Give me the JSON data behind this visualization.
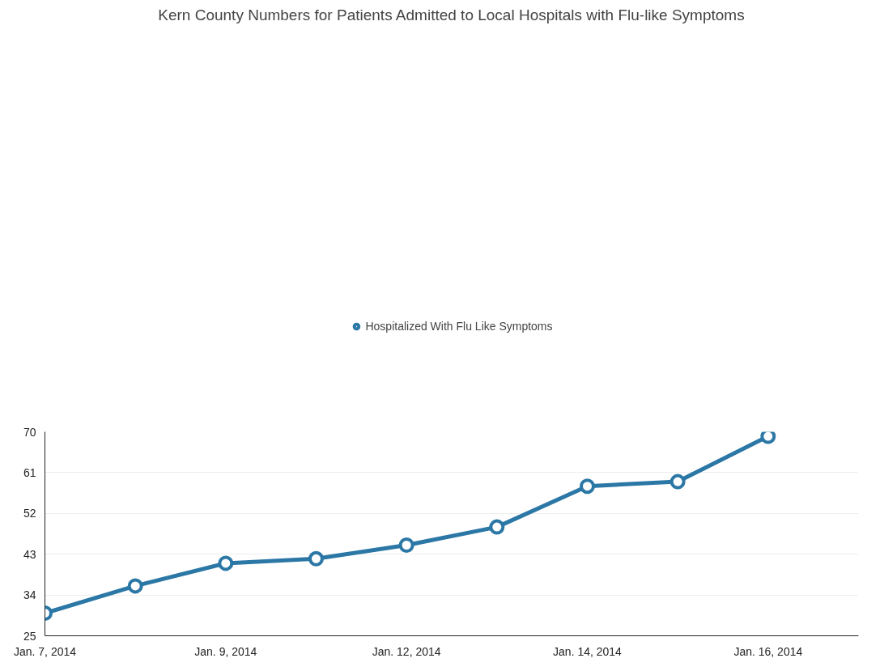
{
  "chart_data": {
    "type": "line",
    "title": "Kern County Numbers for Patients Admitted to Local Hospitals with Flu-like Symptoms",
    "categories": [
      "Jan. 7, 2014",
      null,
      "Jan. 9, 2014",
      null,
      "Jan. 12, 2014",
      null,
      "Jan. 14, 2014",
      null,
      "Jan. 16, 2014"
    ],
    "series": [
      {
        "name": "Hospitalized With Flu Like Symptoms",
        "color": "#2b77a6",
        "values": [
          30,
          36,
          41,
          42,
          45,
          49,
          58,
          59,
          69
        ]
      }
    ],
    "ylim": [
      25,
      70
    ],
    "yticks": [
      25,
      34,
      43,
      52,
      61,
      70
    ],
    "grid": "y",
    "legend": "top",
    "marker": "circle",
    "line_style": "solid"
  }
}
